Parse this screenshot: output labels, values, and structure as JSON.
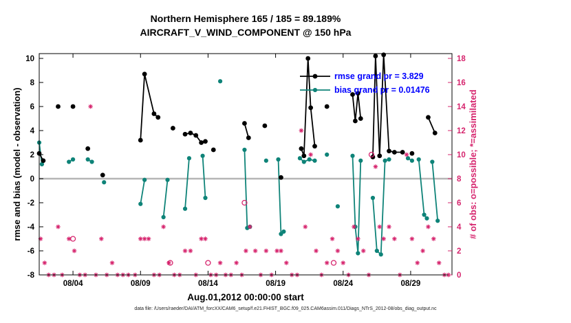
{
  "colors": {
    "rmse": "#000000",
    "bias": "#0e8378",
    "obs": "#d6246d",
    "zero_line": "#b5b5b5",
    "legend_text": "#0000ff",
    "axis": "#000000"
  },
  "footer": {
    "datafile": "data file: /Users/raeder/DAI/ATM_forcXX/CAM6_setup/f.e21.FHIST_BGC.f09_025.CAM6assim.011/Diags_NTrS_2012-08/obs_diag_output.nc"
  },
  "chart_data": {
    "type": "line",
    "title": "Northern Hemisphere 165 / 185 = 89.189%",
    "subtitle": "AIRCRAFT_V_WIND_COMPONENT @ 150 hPa",
    "xlabel": "Aug.01,2012 00:00:00 start",
    "ylabel_left": "rmse and bias (model - observation)",
    "ylabel_right": "# of obs: o=possible; *=assimilated",
    "x_unit": "day of August 2012",
    "xlim": [
      1.5,
      32.06
    ],
    "ylim_left": [
      -8,
      10.4
    ],
    "ylim_right": [
      0,
      18.4
    ],
    "grid": "off",
    "legend_position": "top-right-inside",
    "x_ticks": [
      {
        "day": 4,
        "label": "08/04"
      },
      {
        "day": 9,
        "label": "08/09"
      },
      {
        "day": 14,
        "label": "08/14"
      },
      {
        "day": 19,
        "label": "08/19"
      },
      {
        "day": 24,
        "label": "08/24"
      },
      {
        "day": 29,
        "label": "08/29"
      }
    ],
    "y_left_ticks": [
      -8,
      -6,
      -4,
      -2,
      0,
      2,
      4,
      6,
      8,
      10
    ],
    "y_right_ticks": [
      0,
      2,
      4,
      6,
      8,
      10,
      12,
      14,
      16,
      18
    ],
    "legend": [
      {
        "name": "rmse",
        "label": "rmse grand pr = 3.829",
        "color": "#000000"
      },
      {
        "name": "bias",
        "label": "bias grand pr = 0.01476",
        "color": "#0e8378"
      }
    ],
    "rmse_grand_prior": 3.829,
    "bias_grand_prior": 0.01476,
    "series": [
      {
        "name": "rmse",
        "color": "#000000",
        "segments": [
          [
            [
              1.5,
              2.1
            ],
            [
              1.8,
              1.5
            ]
          ],
          [
            [
              2.9,
              6.0
            ]
          ],
          [
            [
              4.0,
              6.0
            ]
          ],
          [
            [
              5.1,
              2.5
            ]
          ],
          [
            [
              6.2,
              0.3
            ]
          ],
          [
            [
              9.0,
              3.2
            ],
            [
              9.3,
              8.7
            ],
            [
              10.0,
              5.4
            ],
            [
              10.3,
              5.1
            ]
          ],
          [
            [
              11.4,
              4.2
            ]
          ],
          [
            [
              12.3,
              3.7
            ],
            [
              12.7,
              3.8
            ],
            [
              13.1,
              3.6
            ],
            [
              13.5,
              3.0
            ],
            [
              13.8,
              3.1
            ]
          ],
          [
            [
              14.4,
              2.4
            ]
          ],
          [
            [
              16.7,
              4.6
            ],
            [
              17.0,
              3.4
            ]
          ],
          [
            [
              18.2,
              4.4
            ]
          ],
          [
            [
              19.4,
              0.1
            ]
          ],
          [
            [
              20.9,
              2.5
            ],
            [
              21.1,
              1.9
            ],
            [
              21.4,
              10.0
            ],
            [
              21.6,
              5.9
            ],
            [
              21.9,
              2.7
            ]
          ],
          [
            [
              22.8,
              6.0
            ]
          ],
          [
            [
              24.7,
              7.0
            ],
            [
              24.9,
              4.8
            ],
            [
              25.1,
              7.1
            ],
            [
              25.3,
              5.0
            ]
          ],
          [
            [
              26.2,
              1.8
            ],
            [
              26.4,
              10.2
            ],
            [
              26.7,
              1.9
            ],
            [
              27.0,
              10.3
            ],
            [
              27.4,
              2.3
            ],
            [
              27.8,
              2.2
            ],
            [
              28.4,
              2.2
            ]
          ],
          [
            [
              29.1,
              2.1
            ]
          ],
          [
            [
              30.3,
              5.1
            ],
            [
              30.8,
              3.8
            ]
          ]
        ]
      },
      {
        "name": "bias",
        "color": "#0e8378",
        "segments": [
          [
            [
              1.5,
              3.0
            ],
            [
              1.7,
              1.2
            ]
          ],
          [
            [
              3.7,
              1.4
            ],
            [
              4.0,
              1.6
            ]
          ],
          [
            [
              5.1,
              1.6
            ],
            [
              5.4,
              1.4
            ]
          ],
          [
            [
              6.3,
              -0.3
            ]
          ],
          [
            [
              9.0,
              -2.1
            ],
            [
              9.3,
              -0.1
            ]
          ],
          [
            [
              10.7,
              -3.2
            ],
            [
              11.0,
              -0.1
            ]
          ],
          [
            [
              12.3,
              -2.5
            ],
            [
              12.6,
              1.7
            ]
          ],
          [
            [
              13.6,
              1.9
            ],
            [
              13.8,
              -1.6
            ]
          ],
          [
            [
              14.9,
              8.1
            ]
          ],
          [
            [
              16.7,
              2.4
            ],
            [
              16.9,
              -4.1
            ],
            [
              17.1,
              -4.0
            ]
          ],
          [
            [
              18.3,
              1.5
            ]
          ],
          [
            [
              19.2,
              1.6
            ],
            [
              19.4,
              -4.6
            ],
            [
              19.6,
              -4.4
            ]
          ],
          [
            [
              20.8,
              1.7
            ],
            [
              21.1,
              1.4
            ],
            [
              21.5,
              1.6
            ],
            [
              21.9,
              1.5
            ]
          ],
          [
            [
              22.8,
              2.0
            ]
          ],
          [
            [
              23.6,
              -2.3
            ]
          ],
          [
            [
              24.7,
              1.9
            ],
            [
              24.9,
              -4.0
            ],
            [
              25.1,
              -6.2
            ],
            [
              25.3,
              1.5
            ]
          ],
          [
            [
              26.2,
              -1.6
            ],
            [
              26.5,
              -6.0
            ],
            [
              26.8,
              -6.3
            ],
            [
              27.1,
              1.5
            ],
            [
              27.4,
              1.6
            ]
          ],
          [
            [
              28.8,
              1.7
            ],
            [
              29.1,
              1.5
            ]
          ],
          [
            [
              29.6,
              1.6
            ],
            [
              30.0,
              -3.0
            ],
            [
              30.2,
              -3.3
            ]
          ],
          [
            [
              30.6,
              1.4
            ],
            [
              31.0,
              -3.5
            ]
          ]
        ]
      }
    ],
    "obs_possible_circles": [
      [
        4.0,
        3
      ],
      [
        11.2,
        1
      ],
      [
        14.0,
        1
      ],
      [
        16.7,
        6
      ],
      [
        23.3,
        1
      ],
      [
        26.1,
        10
      ]
    ],
    "obs_assimilated_asterisks": [
      [
        1.6,
        3
      ],
      [
        1.9,
        1
      ],
      [
        2.2,
        0
      ],
      [
        2.6,
        0
      ],
      [
        2.9,
        4
      ],
      [
        3.2,
        0
      ],
      [
        3.7,
        3
      ],
      [
        4.1,
        2
      ],
      [
        4.5,
        0
      ],
      [
        4.9,
        0
      ],
      [
        5.3,
        14
      ],
      [
        5.7,
        0
      ],
      [
        6.1,
        3
      ],
      [
        6.5,
        0
      ],
      [
        6.9,
        1
      ],
      [
        7.3,
        0
      ],
      [
        7.7,
        0
      ],
      [
        8.1,
        0
      ],
      [
        8.6,
        0
      ],
      [
        9.0,
        3
      ],
      [
        9.3,
        3
      ],
      [
        9.6,
        3
      ],
      [
        10.0,
        0
      ],
      [
        10.4,
        0
      ],
      [
        10.7,
        4
      ],
      [
        11.1,
        1
      ],
      [
        11.5,
        0
      ],
      [
        11.9,
        0
      ],
      [
        12.3,
        2
      ],
      [
        12.7,
        2
      ],
      [
        13.1,
        0
      ],
      [
        13.5,
        3
      ],
      [
        13.8,
        3
      ],
      [
        14.2,
        0
      ],
      [
        14.6,
        0
      ],
      [
        14.9,
        1
      ],
      [
        15.3,
        0
      ],
      [
        15.7,
        0
      ],
      [
        16.1,
        1
      ],
      [
        16.5,
        0
      ],
      [
        16.8,
        2
      ],
      [
        17.1,
        4
      ],
      [
        17.5,
        2
      ],
      [
        17.9,
        0
      ],
      [
        18.3,
        2
      ],
      [
        18.7,
        0
      ],
      [
        19.1,
        2
      ],
      [
        19.4,
        2
      ],
      [
        19.8,
        1
      ],
      [
        20.2,
        0
      ],
      [
        20.6,
        0
      ],
      [
        20.9,
        12
      ],
      [
        21.2,
        4
      ],
      [
        21.6,
        10
      ],
      [
        22.0,
        2
      ],
      [
        22.4,
        0
      ],
      [
        22.8,
        1
      ],
      [
        23.2,
        3
      ],
      [
        23.6,
        2
      ],
      [
        24.0,
        1
      ],
      [
        24.4,
        0
      ],
      [
        24.8,
        4
      ],
      [
        25.1,
        3
      ],
      [
        25.5,
        2
      ],
      [
        25.9,
        0
      ],
      [
        26.4,
        9
      ],
      [
        26.7,
        4
      ],
      [
        27.0,
        3
      ],
      [
        27.4,
        4
      ],
      [
        27.8,
        3
      ],
      [
        28.2,
        0
      ],
      [
        28.7,
        10
      ],
      [
        29.1,
        3
      ],
      [
        29.5,
        1
      ],
      [
        29.9,
        2
      ],
      [
        30.3,
        4
      ],
      [
        30.7,
        3
      ],
      [
        31.1,
        1
      ],
      [
        31.5,
        0
      ],
      [
        31.8,
        0
      ]
    ]
  }
}
